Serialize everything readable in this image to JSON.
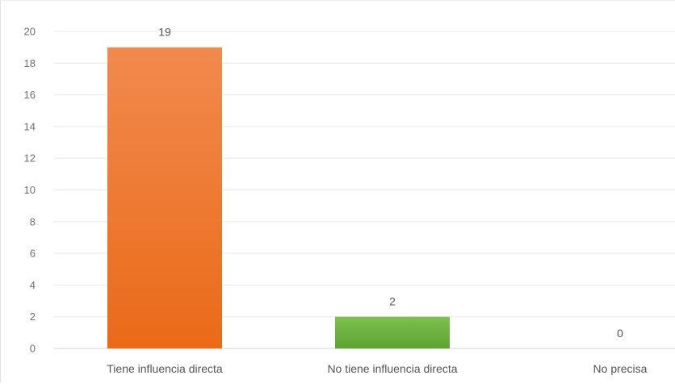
{
  "chart_data": {
    "type": "bar",
    "categories": [
      "Tiene influencia directa",
      "No tiene influencia directa",
      "No precisa"
    ],
    "values": [
      19,
      2,
      0
    ],
    "data_labels": [
      "19",
      "2",
      "0"
    ],
    "title": "",
    "xlabel": "",
    "ylabel": "",
    "ylim": [
      0,
      20
    ],
    "yticks": [
      0,
      2,
      4,
      6,
      8,
      10,
      12,
      14,
      16,
      18,
      20
    ],
    "ytick_labels": [
      "0",
      "2",
      "4",
      "6",
      "8",
      "10",
      "12",
      "14",
      "16",
      "18",
      "20"
    ],
    "grid": true,
    "legend": "none",
    "colors": [
      "#f07a2a",
      "#6db33f",
      "#a5a5a5"
    ]
  }
}
